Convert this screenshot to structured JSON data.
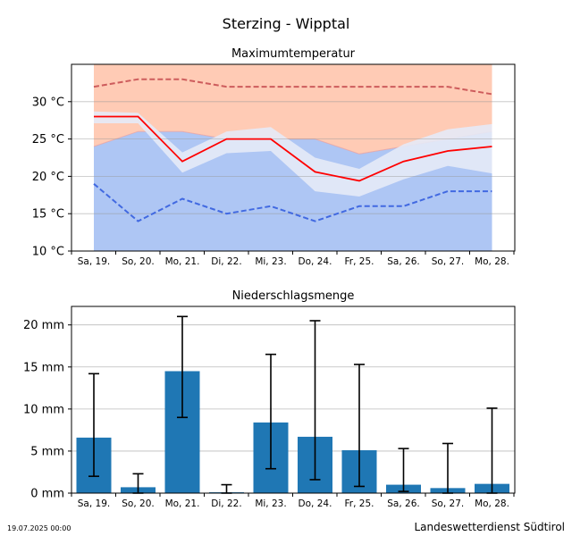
{
  "title": "Sterzing - Wipptal",
  "footer": {
    "timestamp": "19.07.2025 00:00",
    "source": "Landeswetterdienst Südtirol"
  },
  "colors": {
    "max_band_upper": "#ffcbb5",
    "min_band_lower": "#aec6f4",
    "inner_band": "#e6eaf7",
    "max_line": "#cd5c5c",
    "mid_line": "#ff0000",
    "min_line": "#4169e1",
    "bar": "#1f77b4",
    "grid": "#bbbbbb"
  },
  "chart_data": [
    {
      "type": "line",
      "title": "Maximumtemperatur",
      "unit": "°C",
      "categories": [
        "Sa, 19.",
        "So, 20.",
        "Mo, 21.",
        "Di, 22.",
        "Mi, 23.",
        "Do, 24.",
        "Fr, 25.",
        "Sa, 26.",
        "So, 27.",
        "Mo, 28."
      ],
      "ylim": [
        10,
        35
      ],
      "yticks": [
        10,
        15,
        20,
        25,
        30
      ],
      "ytick_labels": [
        "10 °C",
        "15 °C",
        "20 °C",
        "25 °C",
        "30 °C"
      ],
      "grid": true,
      "series": [
        {
          "name": "max",
          "style": "dashed",
          "values": [
            32,
            33,
            33,
            32,
            32,
            32,
            32,
            32,
            32,
            31
          ]
        },
        {
          "name": "mean",
          "style": "solid",
          "values": [
            28,
            28,
            22,
            25,
            25,
            20.6,
            19.4,
            22,
            23.4,
            24
          ]
        },
        {
          "name": "min",
          "style": "dashed",
          "values": [
            19,
            14,
            17,
            15,
            16,
            14,
            16,
            16,
            18,
            18
          ]
        }
      ],
      "band_upper": [
        35,
        35,
        35,
        35,
        35,
        35,
        35,
        35,
        35,
        35
      ],
      "band_mid": [
        24,
        26,
        26,
        25,
        25,
        25,
        23,
        24,
        25,
        26
      ],
      "inner_band_high": [
        28.7,
        28.5,
        23.2,
        26,
        26.6,
        22.5,
        21,
        24.3,
        26.3,
        27
      ],
      "inner_band_low": [
        27.1,
        27.1,
        20.5,
        23.1,
        23.4,
        18,
        17.3,
        19.6,
        21.4,
        20.4
      ]
    },
    {
      "type": "bar",
      "title": "Niederschlagsmenge",
      "unit": "mm",
      "categories": [
        "Sa, 19.",
        "So, 20.",
        "Mo, 21.",
        "Di, 22.",
        "Mi, 23.",
        "Do, 24.",
        "Fr, 25.",
        "Sa, 26.",
        "So, 27.",
        "Mo, 28."
      ],
      "values": [
        6.6,
        0.7,
        14.5,
        0.1,
        8.4,
        6.7,
        5.1,
        1.0,
        0.6,
        1.1
      ],
      "error_low": [
        2.0,
        0.0,
        9.0,
        0.0,
        2.9,
        1.6,
        0.8,
        0.2,
        0.0,
        0.0
      ],
      "error_high": [
        14.2,
        2.3,
        21.0,
        1.0,
        16.5,
        20.5,
        15.3,
        5.3,
        5.9,
        10.1
      ],
      "ylim": [
        0,
        22.2
      ],
      "yticks": [
        0,
        5,
        10,
        15,
        20
      ],
      "ytick_labels": [
        "0 mm",
        "5 mm",
        "10 mm",
        "15 mm",
        "20 mm"
      ],
      "grid": true
    }
  ]
}
